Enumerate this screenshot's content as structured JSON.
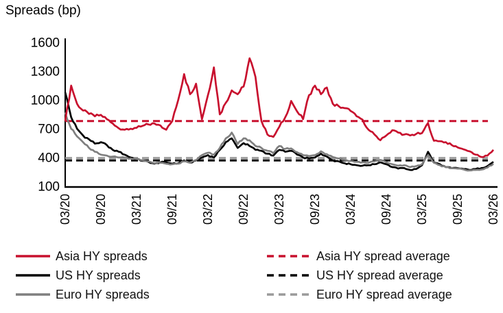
{
  "title": "Spreads (bp)",
  "chart_data": {
    "type": "line",
    "title": "Spreads (bp)",
    "x_unit": "month (MM/YY), monthly from 03/20 to 03/26",
    "x_tick_labels": [
      "03/20",
      "09/20",
      "03/21",
      "09/21",
      "03/22",
      "09/22",
      "03/23",
      "09/23",
      "03/24",
      "09/24",
      "03/25",
      "09/25",
      "03/26"
    ],
    "y_ticks": [
      100,
      400,
      700,
      1000,
      1300,
      1600
    ],
    "ylim": [
      100,
      1600
    ],
    "grid": false,
    "legend_position": "bottom",
    "series": [
      {
        "name": "Asia HY spreads",
        "color": "#c8102e",
        "style": "solid",
        "values": [
          780,
          1150,
          960,
          890,
          855,
          830,
          845,
          800,
          755,
          705,
          690,
          700,
          710,
          730,
          745,
          755,
          735,
          690,
          780,
          1000,
          1270,
          1060,
          1170,
          800,
          1050,
          1340,
          850,
          970,
          1100,
          1060,
          1140,
          1435,
          1240,
          780,
          640,
          615,
          720,
          820,
          990,
          880,
          800,
          1050,
          1150,
          1060,
          1130,
          960,
          935,
          915,
          885,
          830,
          795,
          690,
          640,
          580,
          630,
          685,
          660,
          640,
          630,
          645,
          655,
          760,
          575,
          570,
          560,
          530,
          505,
          485,
          465,
          430,
          405,
          420,
          480
        ]
      },
      {
        "name": "US HY spreads",
        "color": "#000000",
        "style": "solid",
        "values": [
          1080,
          820,
          700,
          630,
          590,
          545,
          560,
          530,
          480,
          460,
          430,
          400,
          385,
          365,
          355,
          335,
          350,
          350,
          335,
          340,
          370,
          345,
          370,
          400,
          425,
          400,
          480,
          560,
          600,
          500,
          550,
          520,
          480,
          470,
          440,
          420,
          480,
          460,
          470,
          430,
          400,
          390,
          400,
          440,
          410,
          370,
          360,
          340,
          330,
          320,
          315,
          320,
          330,
          350,
          330,
          300,
          285,
          290,
          270,
          280,
          320,
          460,
          350,
          330,
          300,
          290,
          290,
          280,
          270,
          280,
          290,
          310,
          355
        ]
      },
      {
        "name": "Euro HY spreads",
        "color": "#7f7f7f",
        "style": "solid",
        "values": [
          870,
          700,
          620,
          560,
          500,
          460,
          430,
          420,
          410,
          400,
          400,
          390,
          385,
          370,
          360,
          340,
          345,
          335,
          330,
          335,
          360,
          345,
          375,
          425,
          450,
          430,
          500,
          600,
          660,
          540,
          600,
          580,
          520,
          500,
          470,
          445,
          520,
          490,
          495,
          455,
          425,
          415,
          425,
          465,
          435,
          405,
          390,
          375,
          365,
          355,
          350,
          345,
          360,
          375,
          350,
          330,
          315,
          320,
          300,
          310,
          330,
          425,
          345,
          320,
          300,
          290,
          285,
          275,
          265,
          270,
          275,
          295,
          335
        ]
      },
      {
        "name": "Asia HY spread average",
        "color": "#c8102e",
        "style": "dashed",
        "value": 780
      },
      {
        "name": "US HY spread average",
        "color": "#000000",
        "style": "dashed",
        "value": 370
      },
      {
        "name": "Euro HY spread average",
        "color": "#9a9a9a",
        "style": "dashed",
        "value": 395
      }
    ]
  }
}
